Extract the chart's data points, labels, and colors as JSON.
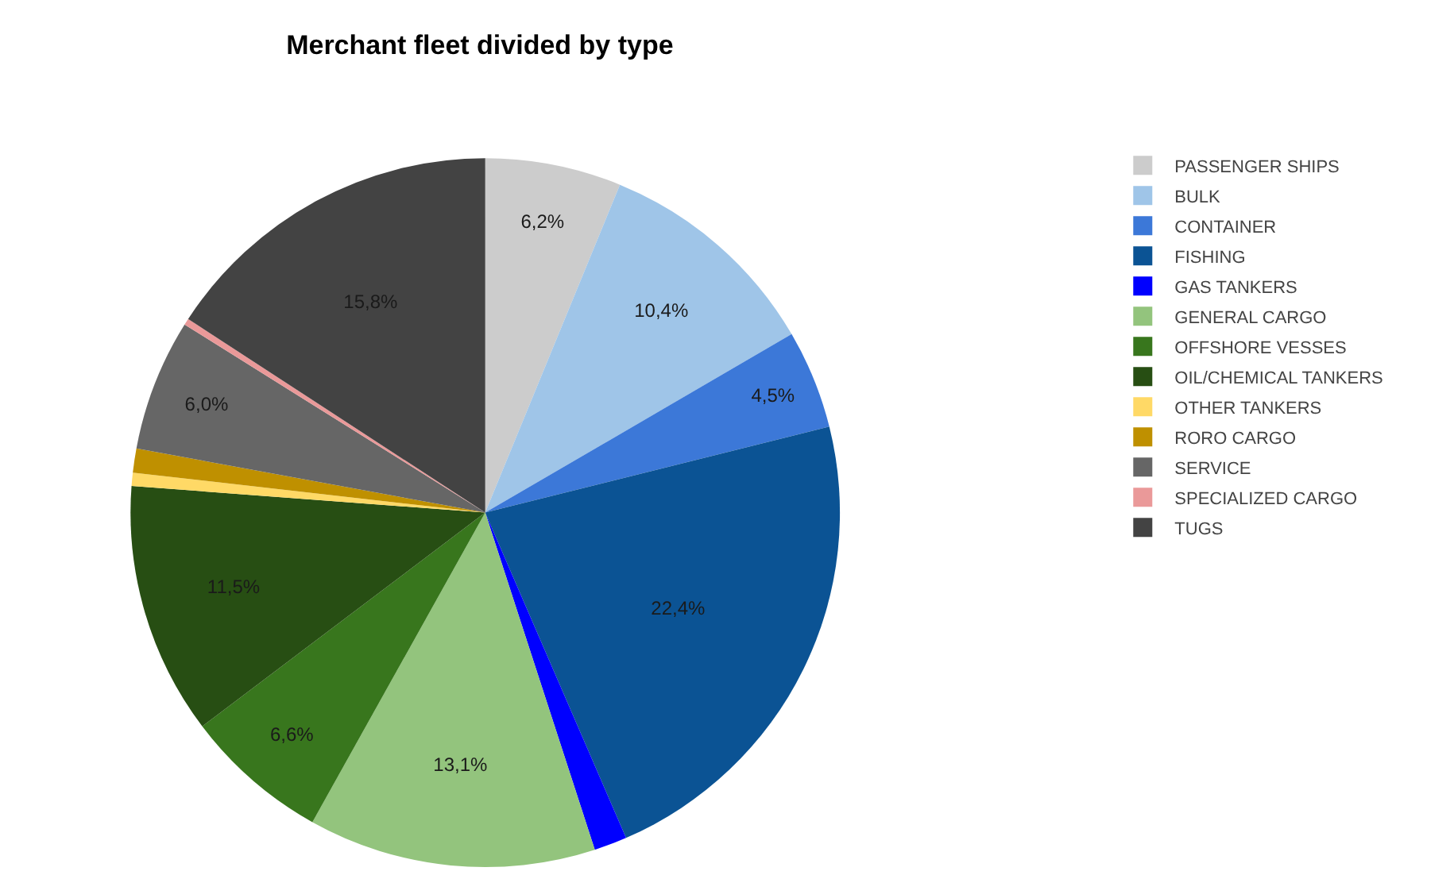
{
  "chart_data": {
    "type": "pie",
    "title": "Merchant fleet divided by type",
    "categories": [
      "PASSENGER SHIPS",
      "BULK",
      "CONTAINER",
      "FISHING",
      "GAS TANKERS",
      "GENERAL CARGO",
      "OFFSHORE VESSES",
      "OIL/CHEMICAL TANKERS",
      "OTHER TANKERS",
      "RORO CARGO",
      "SERVICE",
      "SPECIALIZED CARGO",
      "TUGS"
    ],
    "values": [
      6.2,
      10.4,
      4.5,
      22.4,
      1.5,
      13.1,
      6.6,
      11.5,
      0.6,
      1.1,
      6.0,
      0.3,
      15.8
    ],
    "value_labels": [
      "6,2%",
      "10,4%",
      "4,5%",
      "22,4%",
      null,
      "13,1%",
      "6,6%",
      "11,5%",
      null,
      null,
      "6,0%",
      null,
      "15,8%"
    ],
    "colors": [
      "#cccccc",
      "#9fc5e8",
      "#3c78d8",
      "#0b5394",
      "#0000ff",
      "#93c47d",
      "#38761d",
      "#274e13",
      "#ffd966",
      "#bf9000",
      "#666666",
      "#ea9999",
      "#434343"
    ],
    "legend": "right"
  }
}
